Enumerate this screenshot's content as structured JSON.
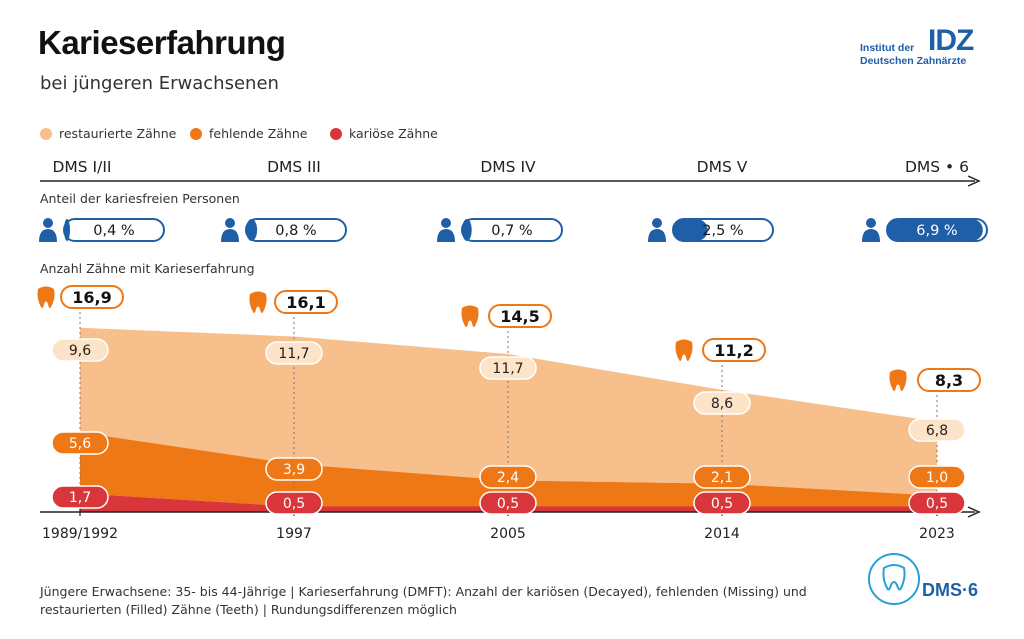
{
  "title": "Karieserfahrung",
  "subtitle": "bei jüngeren Erwachsenen",
  "logo": {
    "line1": "Institut der",
    "line2": "Deutschen Zahnärzte",
    "mark": "IDZ"
  },
  "dms_logo_text": "DMS·6",
  "legend": [
    {
      "label": "restaurierte Zähne",
      "color": "#f7bf8c"
    },
    {
      "label": "fehlende Zähne",
      "color": "#ee7716"
    },
    {
      "label": "kariöse Zähne",
      "color": "#d9363b"
    }
  ],
  "studies": [
    "DMS I/II",
    "DMS III",
    "DMS IV",
    "DMS V",
    "DMS • 6"
  ],
  "section_caries_free": "Anteil der kariesfreien Personen",
  "section_teeth": "Anzahl Zähne mit Karieserfahrung",
  "footer": "Jüngere Erwachsene: 35- bis 44-Jährige | Karieserfahrung (DMFT): Anzahl der kariösen (Decayed), fehlenden (Missing) und restaurierten (Filled) Zähne (Teeth) | Rundungsdifferenzen möglich",
  "chart_data": {
    "type": "area",
    "x": [
      "1989/1992",
      "1997",
      "2005",
      "2014",
      "2023"
    ],
    "caries_free_percent": [
      0.4,
      0.8,
      0.7,
      2.5,
      6.9
    ],
    "caries_free_labels": [
      "0,4 %",
      "0,8 %",
      "0,7 %",
      "2,5 %",
      "6,9 %"
    ],
    "totals": [
      16.9,
      16.1,
      14.5,
      11.2,
      8.3
    ],
    "totals_labels": [
      "16,9",
      "16,1",
      "14,5",
      "11,2",
      "8,3"
    ],
    "series": [
      {
        "name": "restaurierte Zähne",
        "color": "#f7bf8c",
        "values": [
          9.6,
          11.7,
          11.7,
          8.6,
          6.8
        ],
        "labels": [
          "9,6",
          "11,7",
          "11,7",
          "8,6",
          "6,8"
        ]
      },
      {
        "name": "fehlende Zähne",
        "color": "#ee7716",
        "values": [
          5.6,
          3.9,
          2.4,
          2.1,
          1.0
        ],
        "labels": [
          "5,6",
          "3,9",
          "2,4",
          "2,1",
          "1,0"
        ]
      },
      {
        "name": "kariöse Zähne",
        "color": "#d9363b",
        "values": [
          1.7,
          0.5,
          0.5,
          0.5,
          0.5
        ],
        "labels": [
          "1,7",
          "0,5",
          "0,5",
          "0,5",
          "0,5"
        ]
      }
    ]
  }
}
